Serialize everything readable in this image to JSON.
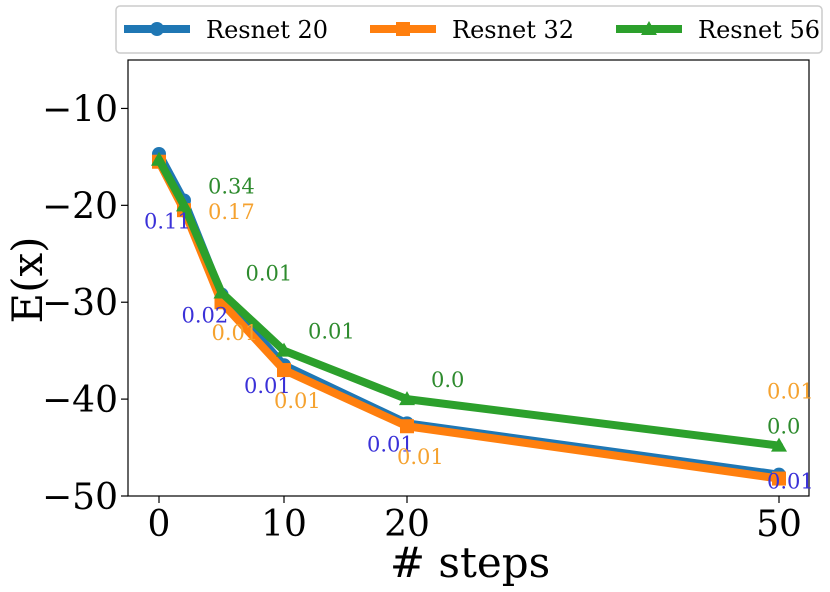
{
  "chart_data": {
    "type": "line",
    "title": "",
    "xlabel": "# steps",
    "ylabel": "E(x)",
    "x_ticks": [
      "0",
      "10",
      "20",
      "50"
    ],
    "y_ticks": [
      "−10",
      "−20",
      "−30",
      "−40",
      "−50"
    ],
    "ylim": [
      -50,
      -5
    ],
    "legend_position": "top",
    "series": [
      {
        "name": "Resnet 20",
        "color": "#1f77b4",
        "marker": "circle",
        "x": [
          0,
          2,
          5,
          10,
          20,
          50
        ],
        "y": [
          -14.7,
          -19.5,
          -29.2,
          -36.5,
          -42.5,
          -47.8
        ],
        "annotations": [
          {
            "x": 2,
            "text": "0.11",
            "color": "#3a31d8"
          },
          {
            "x": 5,
            "text": "0.02",
            "color": "#3a31d8"
          },
          {
            "x": 10,
            "text": "0.01",
            "color": "#3a31d8"
          },
          {
            "x": 20,
            "text": "0.01",
            "color": "#3a31d8"
          },
          {
            "x": 50,
            "text": "0.01",
            "color": "#3a31d8"
          }
        ]
      },
      {
        "name": "Resnet 32",
        "color": "#ff7f0e",
        "marker": "square",
        "x": [
          0,
          2,
          5,
          10,
          20,
          50
        ],
        "y": [
          -15.5,
          -20.5,
          -30.0,
          -37.0,
          -42.8,
          -48.2
        ],
        "annotations": [
          {
            "x": 2,
            "text": "0.17",
            "color": "#f5a22f"
          },
          {
            "x": 5,
            "text": "0.01",
            "color": "#f5a22f"
          },
          {
            "x": 10,
            "text": "0.01",
            "color": "#f5a22f"
          },
          {
            "x": 20,
            "text": "0.01",
            "color": "#f5a22f"
          },
          {
            "x": 50,
            "text": "0.01",
            "color": "#f5a22f"
          }
        ]
      },
      {
        "name": "Resnet 56",
        "color": "#2ca02c",
        "marker": "triangle",
        "x": [
          0,
          2,
          5,
          10,
          20,
          50
        ],
        "y": [
          -15.3,
          -20.0,
          -29.0,
          -35.0,
          -40.0,
          -44.8
        ],
        "annotations": [
          {
            "x": 2,
            "text": "0.34",
            "color": "#2e8b2e"
          },
          {
            "x": 5,
            "text": "0.01",
            "color": "#2e8b2e"
          },
          {
            "x": 10,
            "text": "0.01",
            "color": "#2e8b2e"
          },
          {
            "x": 20,
            "text": "0.0",
            "color": "#2e8b2e"
          },
          {
            "x": 50,
            "text": "0.0",
            "color": "#2e8b2e"
          }
        ]
      }
    ]
  }
}
